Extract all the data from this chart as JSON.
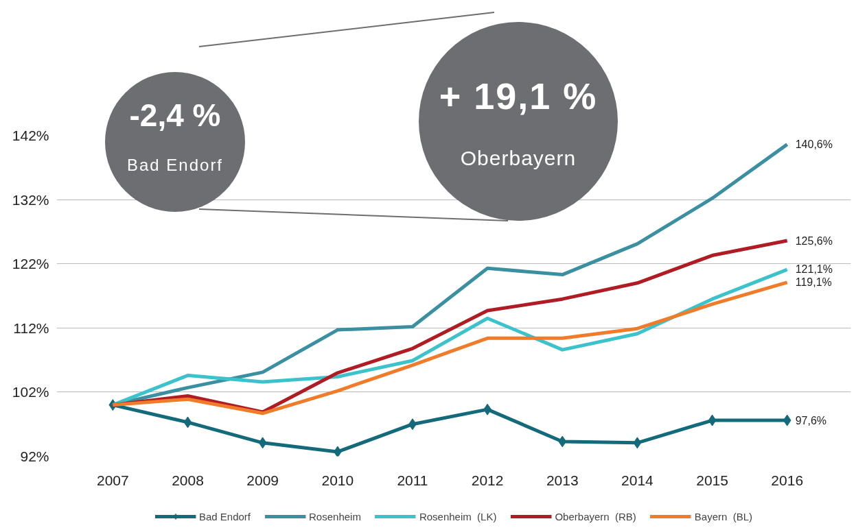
{
  "chart_data": {
    "type": "line",
    "categories": [
      "2007",
      "2008",
      "2009",
      "2010",
      "2011",
      "2012",
      "2013",
      "2014",
      "2015",
      "2016"
    ],
    "series": [
      {
        "name": "Bad Endorf",
        "color": "#136a7a",
        "marker": "diamond",
        "values": [
          100,
          97.3,
          94.1,
          92.7,
          97.0,
          99.3,
          94.3,
          94.1,
          97.6,
          97.6
        ],
        "value_labels": [
          null,
          null,
          null,
          null,
          null,
          null,
          null,
          null,
          null,
          "97,6%"
        ]
      },
      {
        "name": "Rosenheim",
        "color": "#3a8fa0",
        "values": [
          100,
          102.7,
          105.1,
          111.7,
          112.2,
          121.3,
          120.3,
          125.1,
          132.2,
          140.6
        ],
        "value_labels": [
          null,
          null,
          null,
          null,
          null,
          null,
          null,
          null,
          null,
          "140,6%"
        ]
      },
      {
        "name": "Rosenheim  (LK)",
        "color": "#3cc2cb",
        "values": [
          100,
          104.6,
          103.6,
          104.4,
          106.9,
          113.5,
          108.6,
          111.1,
          116.5,
          121.1
        ],
        "value_labels": [
          null,
          null,
          null,
          null,
          null,
          null,
          null,
          null,
          null,
          "121,1%"
        ]
      },
      {
        "name": "Oberbayern  (RB)",
        "color": "#b01c24",
        "values": [
          100,
          101.4,
          98.9,
          105.0,
          108.8,
          114.7,
          116.5,
          119.0,
          123.3,
          125.6
        ],
        "value_labels": [
          null,
          null,
          null,
          null,
          null,
          null,
          null,
          null,
          null,
          "125,6%"
        ]
      },
      {
        "name": "Bayern  (BL)",
        "color": "#f07c2a",
        "values": [
          100,
          100.9,
          98.7,
          102.2,
          106.2,
          110.4,
          110.4,
          111.9,
          115.7,
          119.1
        ],
        "value_labels": [
          null,
          null,
          null,
          null,
          null,
          null,
          null,
          null,
          null,
          "119,1%"
        ]
      }
    ],
    "ylim": [
      92,
      142
    ],
    "yticks": [
      {
        "value": 92,
        "label": "92%"
      },
      {
        "value": 102,
        "label": "102%"
      },
      {
        "value": 112,
        "label": "112%"
      },
      {
        "value": 122,
        "label": "122%"
      },
      {
        "value": 132,
        "label": "132%"
      },
      {
        "value": 142,
        "label": "142%"
      }
    ],
    "grid": "y",
    "legend": "bottom",
    "annotations": [
      "-2,4 %",
      "Bad Endorf",
      "+ 19,1 %",
      "Oberbayern"
    ]
  }
}
